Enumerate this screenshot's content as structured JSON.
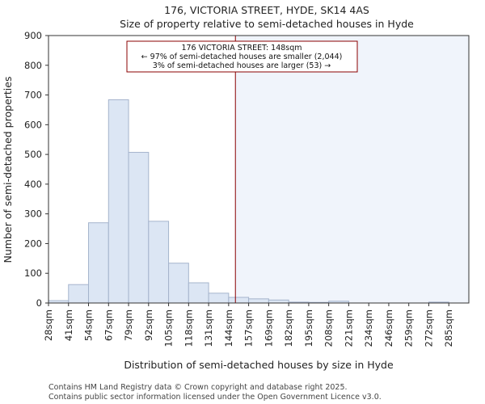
{
  "chart_data": {
    "type": "bar",
    "title": "176, VICTORIA STREET, HYDE, SK14 4AS",
    "subtitle": "Size of property relative to semi-detached houses in Hyde",
    "xlabel": "Distribution of semi-detached houses by size in Hyde",
    "ylabel": "Number of semi-detached properties",
    "categories": [
      "28sqm",
      "41sqm",
      "54sqm",
      "67sqm",
      "79sqm",
      "92sqm",
      "105sqm",
      "118sqm",
      "131sqm",
      "144sqm",
      "157sqm",
      "169sqm",
      "182sqm",
      "195sqm",
      "208sqm",
      "221sqm",
      "234sqm",
      "246sqm",
      "259sqm",
      "272sqm",
      "285sqm"
    ],
    "values": [
      8,
      62,
      270,
      684,
      507,
      275,
      134,
      68,
      33,
      19,
      14,
      10,
      3,
      2,
      6,
      0,
      0,
      0,
      0,
      3,
      0
    ],
    "ylim": [
      0,
      900
    ],
    "yticks": [
      0,
      100,
      200,
      300,
      400,
      500,
      600,
      700,
      800,
      900
    ],
    "grid": false,
    "bar_color": "#dce6f4",
    "bar_edge_color": "#a5b4cc",
    "highlight_color": "#f0f4fb",
    "marker_color": "#8b0000",
    "marker_value_sqm": 148,
    "annotation": {
      "line1": "176 VICTORIA STREET: 148sqm",
      "line2": "← 97% of semi-detached houses are smaller (2,044)",
      "line3": "3% of semi-detached houses are larger (53) →"
    }
  },
  "footer": {
    "line1": "Contains HM Land Registry data © Crown copyright and database right 2025.",
    "line2": "Contains public sector information licensed under the Open Government Licence v3.0."
  }
}
